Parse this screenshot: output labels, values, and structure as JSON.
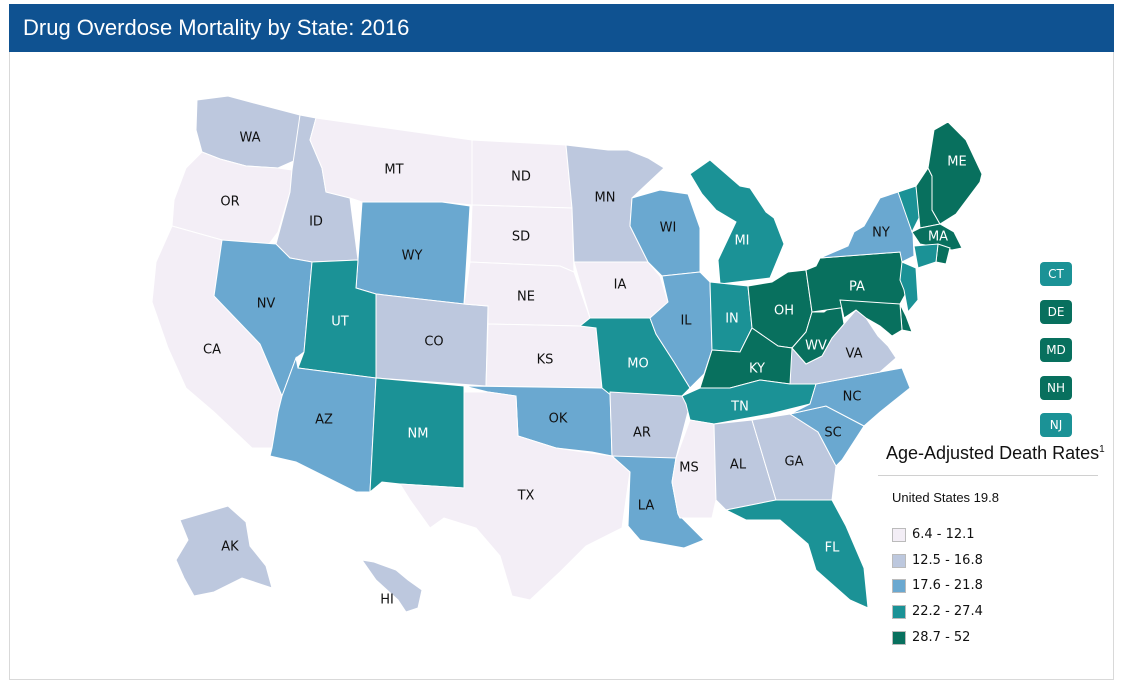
{
  "title": "Drug Overdose Mortality by State: 2016",
  "legend": {
    "title": "Age-Adjusted Death Rates",
    "footnote_mark": "1",
    "us_text": "United States 19.8",
    "bins": [
      {
        "label": "6.4 - 12.1",
        "color": "#f3eef6"
      },
      {
        "label": "12.5 - 16.8",
        "color": "#bdc8de"
      },
      {
        "label": "17.6 - 21.8",
        "color": "#6aa8d0"
      },
      {
        "label": "22.2 - 27.4",
        "color": "#1b9296"
      },
      {
        "label": "28.7 - 52",
        "color": "#08705e"
      }
    ]
  },
  "small_states": [
    {
      "abbr": "CT",
      "color": "#1b9296"
    },
    {
      "abbr": "DE",
      "color": "#08705e"
    },
    {
      "abbr": "MD",
      "color": "#08705e"
    },
    {
      "abbr": "NH",
      "color": "#08705e"
    },
    {
      "abbr": "NJ",
      "color": "#1b9296"
    }
  ],
  "states": {
    "WA": {
      "label": "WA",
      "rate_bin": "12.5 - 16.8"
    },
    "OR": {
      "label": "OR",
      "rate_bin": "6.4 - 12.1"
    },
    "CA": {
      "label": "CA",
      "rate_bin": "6.4 - 12.1"
    },
    "ID": {
      "label": "ID",
      "rate_bin": "12.5 - 16.8"
    },
    "NV": {
      "label": "NV",
      "rate_bin": "17.6 - 21.8"
    },
    "MT": {
      "label": "MT",
      "rate_bin": "6.4 - 12.1"
    },
    "WY": {
      "label": "WY",
      "rate_bin": "17.6 - 21.8"
    },
    "UT": {
      "label": "UT",
      "rate_bin": "22.2 - 27.4"
    },
    "AZ": {
      "label": "AZ",
      "rate_bin": "17.6 - 21.8"
    },
    "CO": {
      "label": "CO",
      "rate_bin": "12.5 - 16.8"
    },
    "NM": {
      "label": "NM",
      "rate_bin": "22.2 - 27.4"
    },
    "ND": {
      "label": "ND",
      "rate_bin": "6.4 - 12.1"
    },
    "SD": {
      "label": "SD",
      "rate_bin": "6.4 - 12.1"
    },
    "NE": {
      "label": "NE",
      "rate_bin": "6.4 - 12.1"
    },
    "KS": {
      "label": "KS",
      "rate_bin": "6.4 - 12.1"
    },
    "OK": {
      "label": "OK",
      "rate_bin": "17.6 - 21.8"
    },
    "TX": {
      "label": "TX",
      "rate_bin": "6.4 - 12.1"
    },
    "MN": {
      "label": "MN",
      "rate_bin": "12.5 - 16.8"
    },
    "IA": {
      "label": "IA",
      "rate_bin": "6.4 - 12.1"
    },
    "MO": {
      "label": "MO",
      "rate_bin": "22.2 - 27.4"
    },
    "AR": {
      "label": "AR",
      "rate_bin": "12.5 - 16.8"
    },
    "LA": {
      "label": "LA",
      "rate_bin": "17.6 - 21.8"
    },
    "WI": {
      "label": "WI",
      "rate_bin": "17.6 - 21.8"
    },
    "IL": {
      "label": "IL",
      "rate_bin": "17.6 - 21.8"
    },
    "MI": {
      "label": "MI",
      "rate_bin": "22.2 - 27.4"
    },
    "IN": {
      "label": "IN",
      "rate_bin": "22.2 - 27.4"
    },
    "OH": {
      "label": "OH",
      "rate_bin": "28.7 - 52"
    },
    "KY": {
      "label": "KY",
      "rate_bin": "28.7 - 52"
    },
    "TN": {
      "label": "TN",
      "rate_bin": "22.2 - 27.4"
    },
    "MS": {
      "label": "MS",
      "rate_bin": "6.4 - 12.1"
    },
    "AL": {
      "label": "AL",
      "rate_bin": "12.5 - 16.8"
    },
    "GA": {
      "label": "GA",
      "rate_bin": "12.5 - 16.8"
    },
    "FL": {
      "label": "FL",
      "rate_bin": "22.2 - 27.4"
    },
    "SC": {
      "label": "SC",
      "rate_bin": "17.6 - 21.8"
    },
    "NC": {
      "label": "NC",
      "rate_bin": "17.6 - 21.8"
    },
    "VA": {
      "label": "VA",
      "rate_bin": "12.5 - 16.8"
    },
    "WV": {
      "label": "WV",
      "rate_bin": "28.7 - 52"
    },
    "PA": {
      "label": "PA",
      "rate_bin": "28.7 - 52"
    },
    "NY": {
      "label": "NY",
      "rate_bin": "17.6 - 21.8"
    },
    "VT": {
      "label": "",
      "rate_bin": "22.2 - 27.4"
    },
    "NH": {
      "label": "",
      "rate_bin": "28.7 - 52"
    },
    "ME": {
      "label": "ME",
      "rate_bin": "28.7 - 52"
    },
    "MA": {
      "label": "MA",
      "rate_bin": "28.7 - 52"
    },
    "RI": {
      "label": "",
      "rate_bin": "28.7 - 52"
    },
    "CT": {
      "label": "",
      "rate_bin": "22.2 - 27.4"
    },
    "NJ": {
      "label": "",
      "rate_bin": "22.2 - 27.4"
    },
    "DE": {
      "label": "",
      "rate_bin": "28.7 - 52"
    },
    "MD": {
      "label": "",
      "rate_bin": "28.7 - 52"
    },
    "AK": {
      "label": "AK",
      "rate_bin": "12.5 - 16.8"
    },
    "HI": {
      "label": "HI",
      "rate_bin": "12.5 - 16.8"
    }
  }
}
